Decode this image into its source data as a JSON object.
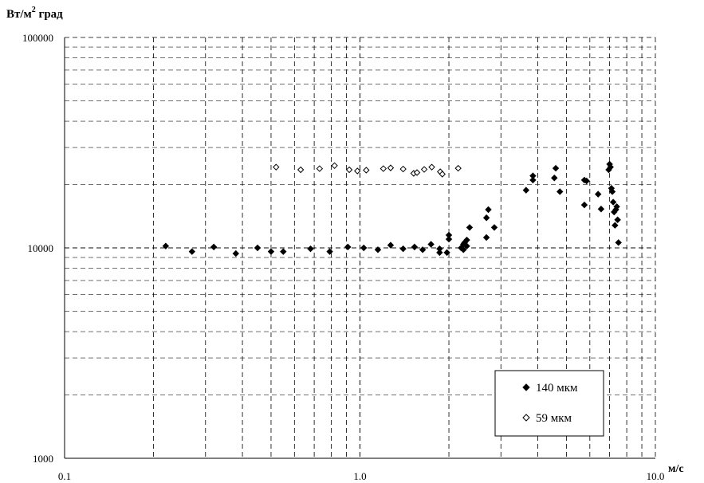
{
  "chart_data": {
    "type": "scatter",
    "title": "",
    "ylabel_main": "Вт/м",
    "ylabel_sup": "2",
    "ylabel_rest": " град",
    "xlabel": "м/с",
    "x_scale": "log",
    "y_scale": "log",
    "xlim": [
      0.1,
      10.0
    ],
    "ylim": [
      1000,
      100000
    ],
    "x_ticks": [
      {
        "value": 0.1,
        "label": "0.1"
      },
      {
        "value": 1.0,
        "label": "1.0"
      },
      {
        "value": 10.0,
        "label": "10.0"
      }
    ],
    "y_ticks": [
      {
        "value": 1000,
        "label": "1000"
      },
      {
        "value": 10000,
        "label": "10000"
      },
      {
        "value": 100000,
        "label": "100000"
      }
    ],
    "grid": true,
    "legend_position": "bottom-right",
    "series": [
      {
        "name": "140 мкм",
        "marker": "filled-diamond",
        "color": "#000000",
        "points": [
          [
            0.22,
            10200
          ],
          [
            0.27,
            9600
          ],
          [
            0.32,
            10100
          ],
          [
            0.38,
            9400
          ],
          [
            0.45,
            10000
          ],
          [
            0.5,
            9600
          ],
          [
            0.55,
            9600
          ],
          [
            0.68,
            9900
          ],
          [
            0.79,
            9600
          ],
          [
            0.91,
            10100
          ],
          [
            1.03,
            10000
          ],
          [
            1.15,
            9800
          ],
          [
            1.27,
            10300
          ],
          [
            1.4,
            9900
          ],
          [
            1.53,
            10100
          ],
          [
            1.63,
            9800
          ],
          [
            1.74,
            10400
          ],
          [
            1.86,
            9500
          ],
          [
            1.86,
            9900
          ],
          [
            1.97,
            9500
          ],
          [
            2.0,
            11000
          ],
          [
            2.0,
            11500
          ],
          [
            2.2,
            10000
          ],
          [
            2.24,
            9800
          ],
          [
            2.24,
            10400
          ],
          [
            2.26,
            10600
          ],
          [
            2.3,
            10900
          ],
          [
            2.3,
            10200
          ],
          [
            2.35,
            12500
          ],
          [
            2.68,
            11200
          ],
          [
            2.68,
            13900
          ],
          [
            2.72,
            15200
          ],
          [
            2.85,
            12500
          ],
          [
            3.65,
            18800
          ],
          [
            3.85,
            21000
          ],
          [
            3.85,
            22000
          ],
          [
            4.55,
            21500
          ],
          [
            4.6,
            23900
          ],
          [
            4.75,
            18500
          ],
          [
            5.75,
            21000
          ],
          [
            5.75,
            16000
          ],
          [
            5.85,
            20800
          ],
          [
            6.4,
            18000
          ],
          [
            6.55,
            15300
          ],
          [
            6.95,
            23500
          ],
          [
            7.0,
            25000
          ],
          [
            7.05,
            24200
          ],
          [
            7.1,
            19200
          ],
          [
            7.15,
            18500
          ],
          [
            7.2,
            16500
          ],
          [
            7.25,
            14800
          ],
          [
            7.3,
            12800
          ],
          [
            7.35,
            15200
          ],
          [
            7.4,
            15700
          ],
          [
            7.45,
            13600
          ],
          [
            7.5,
            10600
          ]
        ]
      },
      {
        "name": "59 мкм",
        "marker": "open-diamond",
        "color": "#000000",
        "points": [
          [
            0.52,
            24200
          ],
          [
            0.63,
            23500
          ],
          [
            0.73,
            23800
          ],
          [
            0.82,
            24600
          ],
          [
            0.92,
            23500
          ],
          [
            0.98,
            23200
          ],
          [
            1.05,
            23400
          ],
          [
            1.2,
            23800
          ],
          [
            1.27,
            24000
          ],
          [
            1.4,
            23700
          ],
          [
            1.52,
            22600
          ],
          [
            1.56,
            22800
          ],
          [
            1.65,
            23600
          ],
          [
            1.75,
            24200
          ],
          [
            1.87,
            23000
          ],
          [
            1.9,
            22400
          ],
          [
            2.15,
            23900
          ]
        ]
      }
    ]
  }
}
